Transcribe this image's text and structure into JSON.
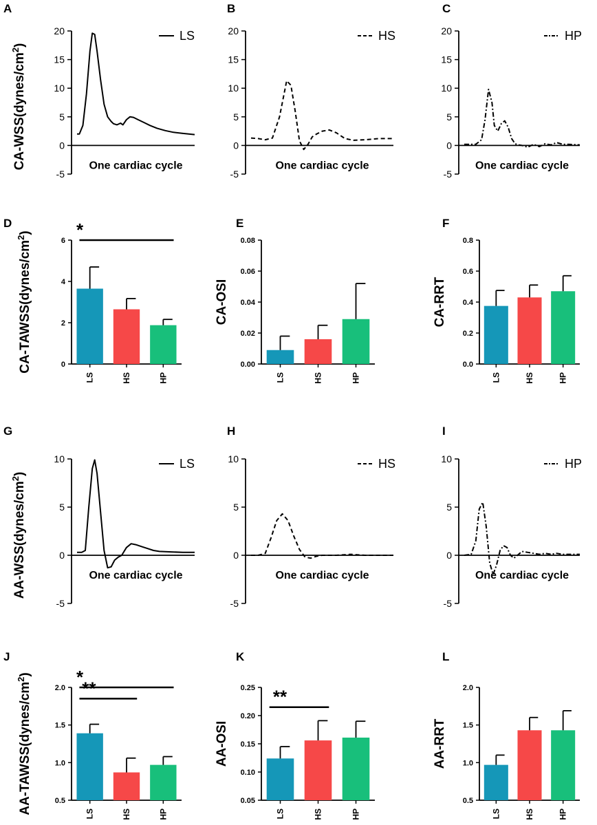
{
  "figure_title": "",
  "colors": {
    "LS": "#1597B8",
    "HS": "#F64848",
    "HP": "#18BF7B",
    "axis": "#000000"
  },
  "chart_data": [
    {
      "panel": "A",
      "type": "line",
      "title": "",
      "ylabel": "CA-WSS(dynes/cm2)",
      "ylabel_main": "CA-WSS(dynes/cm",
      "ylabel_sup": "2",
      "ylabel_tail": ")",
      "xlabel": "One cardiac cycle",
      "ylim": [
        -5,
        20
      ],
      "yticks": [
        -5,
        0,
        5,
        10,
        15,
        20
      ],
      "xlim": [
        0,
        1
      ],
      "grid": false,
      "legend": "LS",
      "legend_position": "top-right",
      "line_style": "solid",
      "series": [
        {
          "name": "LS",
          "x": [
            0,
            0.02,
            0.05,
            0.08,
            0.11,
            0.13,
            0.15,
            0.17,
            0.2,
            0.23,
            0.26,
            0.29,
            0.31,
            0.34,
            0.37,
            0.39,
            0.42,
            0.45,
            0.48,
            0.52,
            0.57,
            0.62,
            0.68,
            0.75,
            0.82,
            0.9,
            1.0
          ],
          "y": [
            2.0,
            2.0,
            3.5,
            9.0,
            16.5,
            19.6,
            19.4,
            16.5,
            11.5,
            7.2,
            5.0,
            4.2,
            3.8,
            3.6,
            3.9,
            3.6,
            4.5,
            5.0,
            4.9,
            4.5,
            4.0,
            3.5,
            3.0,
            2.6,
            2.3,
            2.1,
            1.9
          ]
        }
      ]
    },
    {
      "panel": "B",
      "type": "line",
      "title": "",
      "ylabel": "",
      "xlabel": "One cardiac cycle",
      "ylim": [
        -5,
        20
      ],
      "yticks": [
        -5,
        0,
        5,
        10,
        15,
        20
      ],
      "xlim": [
        0,
        1
      ],
      "grid": false,
      "legend": "HS",
      "legend_position": "top-right",
      "line_style": "dashed",
      "series": [
        {
          "name": "HS",
          "x": [
            0,
            0.05,
            0.1,
            0.15,
            0.2,
            0.25,
            0.28,
            0.31,
            0.34,
            0.37,
            0.4,
            0.43,
            0.46,
            0.5,
            0.55,
            0.6,
            0.66,
            0.72,
            0.8,
            0.9,
            1.0
          ],
          "y": [
            1.3,
            1.2,
            1.0,
            1.3,
            5.0,
            11.3,
            10.5,
            6.0,
            0.8,
            -0.7,
            0.2,
            1.5,
            2.0,
            2.5,
            2.7,
            2.2,
            1.2,
            0.9,
            1.0,
            1.2,
            1.2
          ]
        }
      ]
    },
    {
      "panel": "C",
      "type": "line",
      "title": "",
      "ylabel": "",
      "xlabel": "One cardiac cycle",
      "ylim": [
        -5,
        20
      ],
      "yticks": [
        -5,
        0,
        5,
        10,
        15,
        20
      ],
      "xlim": [
        0,
        1
      ],
      "grid": false,
      "legend": "HP",
      "legend_position": "top-right",
      "line_style": "dash-dot",
      "series": [
        {
          "name": "HP",
          "x": [
            0,
            0.1,
            0.15,
            0.18,
            0.21,
            0.24,
            0.26,
            0.29,
            0.32,
            0.35,
            0.38,
            0.41,
            0.44,
            0.47,
            0.5,
            0.55,
            0.6,
            0.65,
            0.7,
            0.75,
            0.8,
            0.85,
            0.9,
            1.0
          ],
          "y": [
            0.2,
            0.2,
            1.0,
            4.5,
            9.8,
            7.5,
            3.5,
            2.5,
            3.8,
            4.3,
            3.2,
            1.2,
            0.3,
            0.1,
            0.0,
            -0.3,
            0.2,
            -0.2,
            0.3,
            0.1,
            0.5,
            0.2,
            0.2,
            0.1
          ]
        }
      ]
    },
    {
      "panel": "D",
      "type": "bar",
      "title": "",
      "ylabel": "CA-TAWSS(dynes/cm2)",
      "ylabel_main": "CA-TAWSS(dynes/cm",
      "ylabel_sup": "2",
      "ylabel_tail": ")",
      "xlabel": "",
      "ylim": [
        0,
        6
      ],
      "yticks": [
        0,
        2,
        4,
        6
      ],
      "ytick_labels": [
        "0",
        "2",
        "4",
        "6"
      ],
      "categories": [
        "LS",
        "HS",
        "HP"
      ],
      "values": [
        3.65,
        2.65,
        1.88
      ],
      "errors": [
        1.05,
        0.52,
        0.28
      ],
      "annotations": [
        {
          "text": "*",
          "from": "LS",
          "to": "HP",
          "y": 6.0
        }
      ]
    },
    {
      "panel": "E",
      "type": "bar",
      "title": "",
      "ylabel": "CA-OSI",
      "xlabel": "",
      "ylim": [
        0,
        0.08
      ],
      "yticks": [
        0,
        0.02,
        0.04,
        0.06,
        0.08
      ],
      "ytick_labels": [
        "0.00",
        "0.02",
        "0.04",
        "0.06",
        "0.08"
      ],
      "categories": [
        "LS",
        "HS",
        "HP"
      ],
      "values": [
        0.009,
        0.016,
        0.029
      ],
      "errors": [
        0.009,
        0.009,
        0.023
      ],
      "annotations": []
    },
    {
      "panel": "F",
      "type": "bar",
      "title": "",
      "ylabel": "CA-RRT",
      "xlabel": "",
      "ylim": [
        0,
        0.8
      ],
      "yticks": [
        0,
        0.2,
        0.4,
        0.6,
        0.8
      ],
      "ytick_labels": [
        "0.0",
        "0.2",
        "0.4",
        "0.6",
        "0.8"
      ],
      "categories": [
        "LS",
        "HS",
        "HP"
      ],
      "values": [
        0.375,
        0.43,
        0.47
      ],
      "errors": [
        0.1,
        0.08,
        0.1
      ],
      "annotations": []
    },
    {
      "panel": "G",
      "type": "line",
      "title": "",
      "ylabel": "AA-WSS(dynes/cm2)",
      "ylabel_main": "AA-WSS(dynes/cm",
      "ylabel_sup": "2",
      "ylabel_tail": ")",
      "xlabel": "One cardiac cycle",
      "ylim": [
        -5,
        10
      ],
      "yticks": [
        -5,
        0,
        5,
        10
      ],
      "xlim": [
        0,
        1
      ],
      "grid": false,
      "legend": "LS",
      "legend_position": "top-right",
      "line_style": "solid",
      "series": [
        {
          "name": "LS",
          "x": [
            0,
            0.04,
            0.07,
            0.1,
            0.13,
            0.15,
            0.17,
            0.2,
            0.23,
            0.26,
            0.29,
            0.32,
            0.35,
            0.38,
            0.42,
            0.46,
            0.5,
            0.55,
            0.6,
            0.65,
            0.7,
            0.8,
            0.9,
            1.0
          ],
          "y": [
            0.3,
            0.3,
            0.5,
            5.0,
            9.0,
            9.9,
            8.5,
            4.5,
            0.5,
            -1.3,
            -1.2,
            -0.5,
            -0.2,
            0.0,
            0.8,
            1.2,
            1.1,
            0.9,
            0.7,
            0.5,
            0.4,
            0.35,
            0.3,
            0.3
          ]
        }
      ]
    },
    {
      "panel": "H",
      "type": "line",
      "title": "",
      "ylabel": "",
      "xlabel": "One cardiac cycle",
      "ylim": [
        -5,
        10
      ],
      "yticks": [
        -5,
        0,
        5,
        10
      ],
      "xlim": [
        0,
        1
      ],
      "grid": false,
      "legend": "HS",
      "legend_position": "top-right",
      "line_style": "dashed",
      "series": [
        {
          "name": "HS",
          "x": [
            0,
            0.05,
            0.1,
            0.14,
            0.18,
            0.22,
            0.26,
            0.3,
            0.34,
            0.38,
            0.42,
            0.46,
            0.5,
            0.6,
            0.7,
            0.8,
            0.9,
            1.0
          ],
          "y": [
            0.0,
            0.0,
            0.2,
            1.8,
            3.6,
            4.3,
            3.6,
            2.0,
            0.6,
            -0.2,
            -0.3,
            -0.1,
            0.0,
            0.0,
            0.1,
            0.0,
            0.0,
            0.0
          ]
        }
      ]
    },
    {
      "panel": "I",
      "type": "line",
      "title": "",
      "ylabel": "",
      "xlabel": "One cardiac cycle",
      "ylim": [
        -5,
        10
      ],
      "yticks": [
        -5,
        0,
        5,
        10
      ],
      "xlim": [
        0,
        1
      ],
      "grid": false,
      "legend": "HP",
      "legend_position": "top-right",
      "line_style": "dash-dot",
      "series": [
        {
          "name": "HP",
          "x": [
            0,
            0.06,
            0.1,
            0.13,
            0.16,
            0.19,
            0.22,
            0.25,
            0.28,
            0.31,
            0.34,
            0.37,
            0.4,
            0.43,
            0.46,
            0.5,
            0.55,
            0.6,
            0.65,
            0.7,
            0.75,
            0.8,
            0.85,
            0.9,
            1.0
          ],
          "y": [
            0.0,
            0.1,
            1.5,
            4.8,
            5.5,
            3.0,
            -0.8,
            -2.0,
            -1.0,
            0.5,
            1.0,
            0.8,
            0.0,
            -0.3,
            0.0,
            0.4,
            0.3,
            0.2,
            0.1,
            0.2,
            0.1,
            0.2,
            0.1,
            0.1,
            0.1
          ]
        }
      ]
    },
    {
      "panel": "J",
      "type": "bar",
      "title": "",
      "ylabel": "AA-TAWSS(dynes/cm2)",
      "ylabel_main": "AA-TAWSS(dynes/cm",
      "ylabel_sup": "2",
      "ylabel_tail": ")",
      "xlabel": "",
      "ylim": [
        0.5,
        2.0
      ],
      "yticks": [
        0.5,
        1.0,
        1.5,
        2.0
      ],
      "ytick_labels": [
        "0.5",
        "1.0",
        "1.5",
        "2.0"
      ],
      "categories": [
        "LS",
        "HS",
        "HP"
      ],
      "values": [
        1.39,
        0.87,
        0.97
      ],
      "errors": [
        0.12,
        0.19,
        0.11
      ],
      "annotations": [
        {
          "text": "*",
          "from": "LS",
          "to": "HP",
          "y": 2.0
        },
        {
          "text": "**",
          "from": "LS",
          "to": "HS",
          "y": 1.85
        }
      ]
    },
    {
      "panel": "K",
      "type": "bar",
      "title": "",
      "ylabel": "AA-OSI",
      "xlabel": "",
      "ylim": [
        0.05,
        0.25
      ],
      "yticks": [
        0.05,
        0.1,
        0.15,
        0.2,
        0.25
      ],
      "ytick_labels": [
        "0.05",
        "0.10",
        "0.15",
        "0.20",
        "0.25"
      ],
      "categories": [
        "LS",
        "HS",
        "HP"
      ],
      "values": [
        0.124,
        0.156,
        0.161
      ],
      "errors": [
        0.021,
        0.035,
        0.029
      ],
      "annotations": [
        {
          "text": "**",
          "from": "LS",
          "to": "HS",
          "y": 0.215
        }
      ]
    },
    {
      "panel": "L",
      "type": "bar",
      "title": "",
      "ylabel": "AA-RRT",
      "xlabel": "",
      "ylim": [
        0.5,
        2.0
      ],
      "yticks": [
        0.5,
        1.0,
        1.5,
        2.0
      ],
      "ytick_labels": [
        "0.5",
        "1.0",
        "1.5",
        "2.0"
      ],
      "categories": [
        "LS",
        "HS",
        "HP"
      ],
      "values": [
        0.97,
        1.43,
        1.43
      ],
      "errors": [
        0.13,
        0.17,
        0.26
      ],
      "annotations": []
    }
  ]
}
